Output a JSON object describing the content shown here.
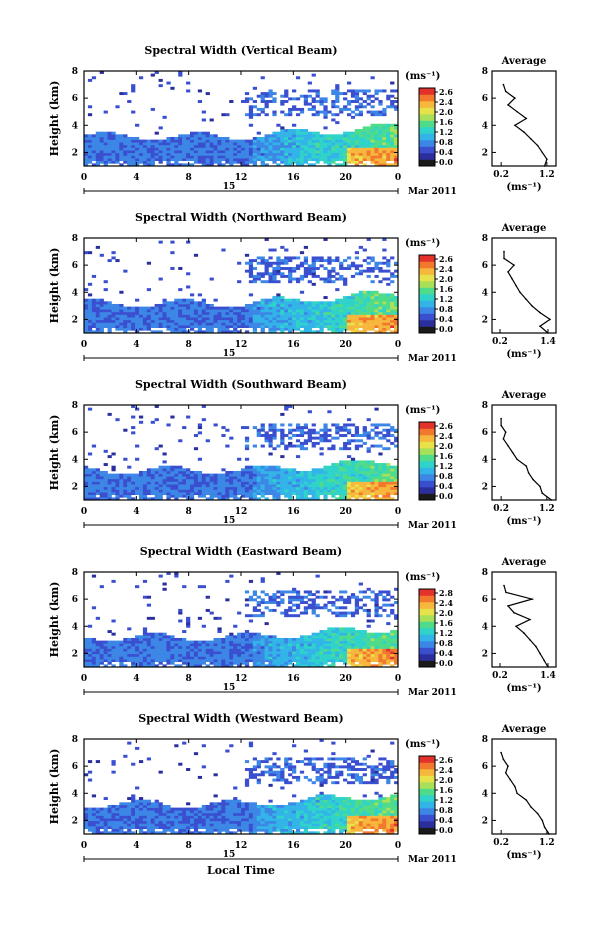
{
  "figure": {
    "date_marker": "15",
    "date_suffix": "Mar 2011",
    "x_axis_label": "Local Time",
    "colorbar_unit": "(ms⁻¹)",
    "profile_title": "Average",
    "profile_xlabel": "(ms⁻¹)",
    "colors": {
      "scale": [
        "#1a1a1a",
        "#2b2f9e",
        "#3a4fd0",
        "#3c86e6",
        "#32b4e8",
        "#2fd3c9",
        "#4fdc8a",
        "#a9e05a",
        "#e8e24a",
        "#f6b73c",
        "#f2782e",
        "#e2322b"
      ]
    }
  },
  "chart_data": [
    {
      "type": "heatmap",
      "title": "Spectral Width (Vertical Beam)",
      "xlabel": "",
      "ylabel": "Height (km)",
      "x_ticks": [
        "0",
        "4",
        "8",
        "12",
        "16",
        "20",
        "0"
      ],
      "y_ticks": [
        "2",
        "4",
        "6",
        "8"
      ],
      "xlim": [
        0,
        24
      ],
      "ylim": [
        1,
        8
      ],
      "colorbar": {
        "unit": "(ms⁻¹)",
        "ticks": [
          "2.6",
          "2.4",
          "2.0",
          "1.6",
          "1.2",
          "0.8",
          "0.4",
          "0.0"
        ],
        "range": [
          0,
          2.8
        ]
      },
      "profile": {
        "title": "Average",
        "xlabel": "(ms⁻¹)",
        "x_ticks": [
          "0.2",
          "1.2"
        ],
        "xlim": [
          0,
          1.4
        ],
        "y_ticks": [
          "2",
          "4",
          "6",
          "8"
        ],
        "ylim": [
          1,
          8
        ],
        "heights": [
          1.0,
          1.5,
          2.0,
          2.5,
          3.0,
          3.5,
          4.0,
          4.5,
          5.0,
          5.5,
          6.0,
          6.5,
          7.0
        ],
        "values": [
          1.15,
          1.2,
          1.1,
          1.0,
          0.85,
          0.7,
          0.5,
          0.75,
          0.55,
          0.35,
          0.5,
          0.3,
          0.25
        ]
      }
    },
    {
      "type": "heatmap",
      "title": "Spectral Width (Northward Beam)",
      "xlabel": "",
      "ylabel": "Height (km)",
      "x_ticks": [
        "0",
        "4",
        "8",
        "12",
        "16",
        "20",
        "0"
      ],
      "y_ticks": [
        "2",
        "4",
        "6",
        "8"
      ],
      "xlim": [
        0,
        24
      ],
      "ylim": [
        1,
        8
      ],
      "colorbar": {
        "unit": "(ms⁻¹)",
        "ticks": [
          "2.6",
          "2.4",
          "2.0",
          "1.6",
          "1.2",
          "0.8",
          "0.4",
          "0.0"
        ],
        "range": [
          0,
          2.8
        ]
      },
      "profile": {
        "title": "Average",
        "xlabel": "(ms⁻¹)",
        "x_ticks": [
          "0.2",
          "1.4"
        ],
        "xlim": [
          0,
          1.6
        ],
        "y_ticks": [
          "2",
          "4",
          "6",
          "8"
        ],
        "ylim": [
          1,
          8
        ],
        "heights": [
          1.0,
          1.5,
          2.0,
          2.5,
          3.0,
          3.5,
          4.0,
          4.5,
          5.0,
          5.5,
          6.0,
          6.5,
          7.0
        ],
        "values": [
          1.4,
          1.2,
          1.45,
          1.2,
          1.0,
          0.85,
          0.7,
          0.6,
          0.5,
          0.4,
          0.55,
          0.3,
          0.3
        ]
      }
    },
    {
      "type": "heatmap",
      "title": "Spectral Width (Southward Beam)",
      "xlabel": "",
      "ylabel": "Height (km)",
      "x_ticks": [
        "0",
        "4",
        "8",
        "12",
        "16",
        "20",
        "0"
      ],
      "y_ticks": [
        "2",
        "4",
        "6",
        "8"
      ],
      "xlim": [
        0,
        24
      ],
      "ylim": [
        1,
        8
      ],
      "colorbar": {
        "unit": "(ms⁻¹)",
        "ticks": [
          "2.6",
          "2.4",
          "2.0",
          "1.6",
          "1.2",
          "0.8",
          "0.4",
          "0.0"
        ],
        "range": [
          0,
          2.8
        ]
      },
      "profile": {
        "title": "Average",
        "xlabel": "(ms⁻¹)",
        "x_ticks": [
          "0.2",
          "1.2"
        ],
        "xlim": [
          0,
          1.4
        ],
        "y_ticks": [
          "2",
          "4",
          "6",
          "8"
        ],
        "ylim": [
          1,
          8
        ],
        "heights": [
          1.0,
          1.5,
          2.0,
          2.5,
          3.0,
          3.5,
          4.0,
          4.5,
          5.0,
          5.5,
          6.0,
          6.5,
          7.0
        ],
        "values": [
          1.3,
          1.1,
          1.05,
          0.9,
          0.8,
          0.75,
          0.55,
          0.45,
          0.35,
          0.25,
          0.3,
          0.2,
          0.2
        ]
      }
    },
    {
      "type": "heatmap",
      "title": "Spectral Width (Eastward Beam)",
      "xlabel": "",
      "ylabel": "Height (km)",
      "x_ticks": [
        "0",
        "4",
        "8",
        "12",
        "16",
        "20",
        "0"
      ],
      "y_ticks": [
        "2",
        "4",
        "6",
        "8"
      ],
      "xlim": [
        0,
        24
      ],
      "ylim": [
        1,
        8
      ],
      "colorbar": {
        "unit": "(ms⁻¹)",
        "ticks": [
          "2.8",
          "2.4",
          "2.0",
          "1.6",
          "1.2",
          "0.8",
          "0.4",
          "0.0"
        ],
        "range": [
          0,
          2.8
        ]
      },
      "profile": {
        "title": "Average",
        "xlabel": "(ms⁻¹)",
        "x_ticks": [
          "0.2",
          "1.4"
        ],
        "xlim": [
          0,
          1.6
        ],
        "y_ticks": [
          "2",
          "4",
          "6",
          "8"
        ],
        "ylim": [
          1,
          8
        ],
        "heights": [
          1.0,
          1.5,
          2.0,
          2.5,
          3.0,
          3.5,
          4.0,
          4.5,
          5.0,
          5.5,
          6.0,
          6.5,
          7.0
        ],
        "values": [
          1.4,
          1.3,
          1.2,
          1.1,
          0.95,
          0.8,
          0.6,
          0.95,
          0.55,
          0.4,
          1.0,
          0.35,
          0.3
        ]
      }
    },
    {
      "type": "heatmap",
      "title": "Spectral Width (Westward Beam)",
      "xlabel": "Local Time",
      "ylabel": "Height (km)",
      "x_ticks": [
        "0",
        "4",
        "8",
        "12",
        "16",
        "20",
        "0"
      ],
      "y_ticks": [
        "2",
        "4",
        "6",
        "8"
      ],
      "xlim": [
        0,
        24
      ],
      "ylim": [
        1,
        8
      ],
      "colorbar": {
        "unit": "(ms⁻¹)",
        "ticks": [
          "2.6",
          "2.4",
          "2.0",
          "1.6",
          "1.2",
          "0.8",
          "0.4",
          "0.0"
        ],
        "range": [
          0,
          2.8
        ]
      },
      "profile": {
        "title": "Average",
        "xlabel": "(ms⁻¹)",
        "x_ticks": [
          "0.2",
          "1.2"
        ],
        "xlim": [
          0,
          1.4
        ],
        "y_ticks": [
          "2",
          "4",
          "6",
          "8"
        ],
        "ylim": [
          1,
          8
        ],
        "heights": [
          1.0,
          1.5,
          2.0,
          2.5,
          3.0,
          3.5,
          4.0,
          4.5,
          5.0,
          5.5,
          6.0,
          6.5,
          7.0
        ],
        "values": [
          1.25,
          1.15,
          1.1,
          1.0,
          0.85,
          0.75,
          0.55,
          0.5,
          0.4,
          0.3,
          0.35,
          0.25,
          0.2
        ]
      }
    }
  ]
}
